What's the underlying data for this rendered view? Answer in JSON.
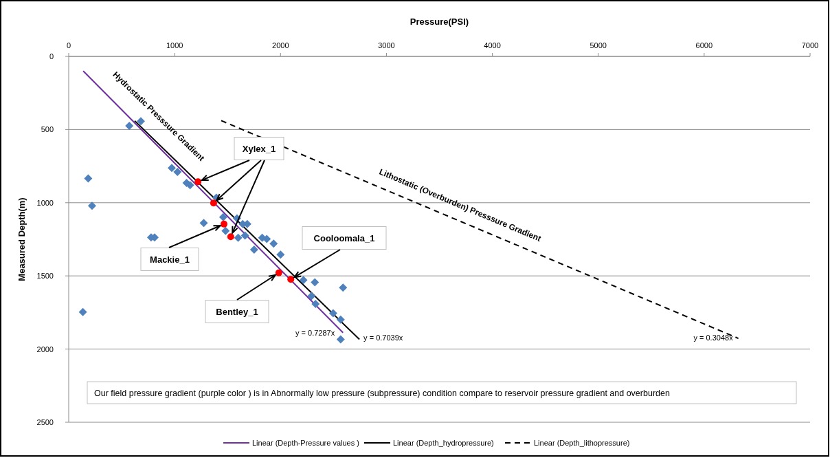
{
  "chart_data": {
    "type": "scatter",
    "xlabel": "Pressure(PSI)",
    "ylabel": "Measured Depth(m)",
    "xlim": [
      0,
      7000
    ],
    "xticks": [
      0,
      1000,
      2000,
      3000,
      4000,
      5000,
      6000,
      7000
    ],
    "ylim": [
      2500,
      0
    ],
    "yticks": [
      0,
      500,
      1000,
      1500,
      2000,
      2500
    ],
    "grid": "y",
    "legend": "bottom",
    "series": [
      {
        "marker": "diamond",
        "color": "#4f81bd",
        "x": [
          572,
          681,
          184,
          220,
          973,
          1027,
          1113,
          1146,
          1394,
          1275,
          1459,
          1481,
          1589,
          1600,
          1643,
          1686,
          1665,
          778,
          811,
          1827,
          1870,
          1935,
          1751,
          2000,
          2216,
          2324,
          2590,
          2292,
          2331,
          2497,
          2568,
          2568,
          134
        ],
        "values": [
          475,
          443,
          834,
          1021,
          763,
          790,
          865,
          880,
          966,
          1138,
          1099,
          1193,
          1107,
          1240,
          1146,
          1146,
          1224,
          1237,
          1237,
          1240,
          1248,
          1279,
          1321,
          1354,
          1529,
          1544,
          1580,
          1638,
          1692,
          1755,
          1799,
          1934,
          1747
        ]
      },
      {
        "marker": "circle",
        "color": "#ff0000",
        "x": [
          1221,
          1368,
          1466,
          1530,
          1984,
          2097
        ],
        "values": [
          857,
          1002,
          1146,
          1232,
          1479,
          1524
        ]
      },
      {
        "type": "line",
        "name": "Linear (Depth-Pressure values )",
        "color": "#7030a0",
        "line_style": "solid",
        "x": [
          137,
          2590
        ],
        "values": [
          100,
          1888
        ]
      },
      {
        "type": "line",
        "name": "Linear (Depth_hydropressure)",
        "color": "#000000",
        "line_style": "solid",
        "x": [
          623,
          2745
        ],
        "values": [
          440,
          1934
        ]
      },
      {
        "type": "line",
        "name": "Linear (Depth_lithopressure)",
        "color": "#000000",
        "line_style": "dashed",
        "x": [
          1440,
          6323
        ],
        "values": [
          439,
          1927
        ]
      }
    ],
    "annotations": [
      "Hydrostatic Presssure Gradient",
      "Lithostatic (Overburden) Presssure Gradient",
      {
        "text": "Xylex_1",
        "x": 1221,
        "y": 857
      },
      {
        "text": "Mackie_1",
        "x": 1466,
        "y": 1146
      },
      {
        "text": "Cooloomala_1",
        "x": 2097,
        "y": 1524
      },
      {
        "text": "Bentley_1",
        "x": 1984,
        "y": 1479
      },
      {
        "text": "y = 0.7287x",
        "x": 2590,
        "y": 1888
      },
      {
        "text": "y = 0.7039x",
        "x": 2745,
        "y": 1934
      },
      {
        "text": "y = 0.3048x",
        "x": 6323,
        "y": 1927
      },
      "Our field pressure gradient (purple color ) is in Abnormally low pressure (subpressure)  condition compare to reservoir pressure gradient and overburden"
    ]
  }
}
